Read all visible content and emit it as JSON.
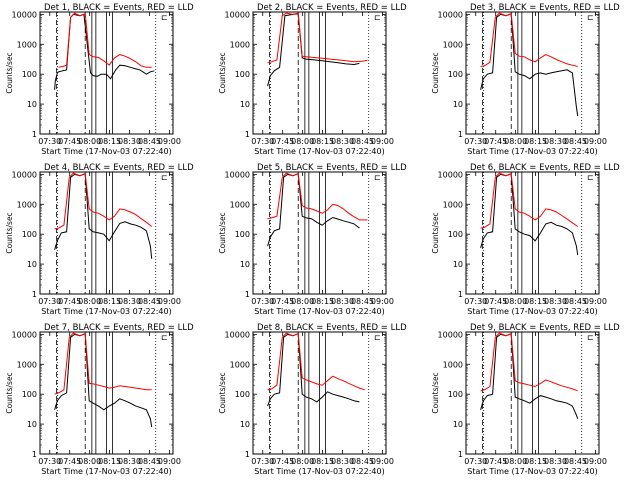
{
  "colors": {
    "black_series": "#000000",
    "red_series": "#ff0000",
    "background": "#ffffff",
    "axes": "#000000"
  },
  "common": {
    "xlabel": "Start Time (17-Nov-03 07:22:40)",
    "ylabel": "Counts/sec",
    "x_ticks": [
      "07:30",
      "07:45",
      "08:00",
      "08:15",
      "08:30",
      "08:45",
      "09:00"
    ],
    "y_ticks": [
      "1",
      "10",
      "100",
      "1000",
      "10000"
    ],
    "y_scale": "log",
    "ylim": [
      1,
      12000
    ],
    "legend_glyph": "⊏"
  },
  "chart_data": [
    {
      "type": "line",
      "title": "Det 1, BLACK = Events, RED = LLD",
      "xlabel": "Start Time (17-Nov-03 07:22:40)",
      "ylabel": "Counts/sec",
      "x_unit": "minutes after 07:22:40",
      "ylim": [
        1,
        12000
      ],
      "series": [
        {
          "name": "Events",
          "color": "#000000",
          "x": [
            11,
            11.5,
            13,
            14,
            20,
            23,
            25,
            30,
            33,
            38,
            40,
            43,
            46,
            50,
            53,
            57,
            60,
            64,
            68,
            72,
            75,
            80,
            83,
            86
          ],
          "y": [
            30,
            60,
            110,
            120,
            140,
            8000,
            10000,
            9000,
            10000,
            110,
            90,
            85,
            100,
            100,
            70,
            140,
            200,
            190,
            170,
            150,
            140,
            100,
            120,
            130
          ]
        },
        {
          "name": "LLD",
          "color": "#ff0000",
          "x": [
            14,
            17,
            20,
            23,
            26,
            30,
            34,
            37,
            40,
            44,
            48,
            52,
            56,
            60,
            64,
            68,
            72,
            76,
            80,
            84
          ],
          "y": [
            170,
            180,
            200,
            8000,
            11000,
            9000,
            10500,
            450,
            380,
            360,
            280,
            200,
            350,
            450,
            400,
            330,
            260,
            190,
            170,
            170
          ]
        }
      ]
    },
    {
      "type": "line",
      "title": "Det 2, BLACK = Events, RED = LLD",
      "xlabel": "Start Time (17-Nov-03 07:22:40)",
      "ylabel": "Counts/sec",
      "x_unit": "minutes after 07:22:40",
      "ylim": [
        1,
        12000
      ],
      "series": [
        {
          "name": "Events",
          "color": "#000000",
          "x": [
            11,
            13,
            16,
            20,
            24,
            30,
            34,
            37,
            40,
            46,
            52,
            58,
            64,
            70,
            76,
            80
          ],
          "y": [
            40,
            90,
            130,
            170,
            9000,
            10000,
            10500,
            350,
            320,
            300,
            280,
            260,
            240,
            220,
            210,
            230
          ]
        },
        {
          "name": "LLD",
          "color": "#ff0000",
          "x": [
            11,
            14,
            18,
            22,
            25,
            30,
            34,
            37,
            40,
            46,
            52,
            58,
            64,
            70,
            76,
            82,
            86
          ],
          "y": [
            240,
            260,
            300,
            9000,
            11000,
            10000,
            11000,
            400,
            380,
            360,
            340,
            320,
            300,
            280,
            260,
            270,
            290
          ]
        }
      ]
    },
    {
      "type": "line",
      "title": "Det 3, BLACK = Events, RED = LLD",
      "xlabel": "Start Time (17-Nov-03 07:22:40)",
      "ylabel": "Counts/sec",
      "x_unit": "minutes after 07:22:40",
      "ylim": [
        1,
        12000
      ],
      "series": [
        {
          "name": "Events",
          "color": "#000000",
          "x": [
            11,
            13,
            16,
            20,
            23,
            26,
            30,
            34,
            37,
            40,
            44,
            48,
            52,
            56,
            60,
            64,
            68,
            72,
            76,
            80,
            83,
            84
          ],
          "y": [
            30,
            70,
            100,
            110,
            8000,
            10000,
            9000,
            10500,
            120,
            100,
            90,
            70,
            100,
            110,
            100,
            110,
            120,
            130,
            140,
            110,
            8,
            4
          ]
        },
        {
          "name": "LLD",
          "color": "#ff0000",
          "x": [
            11,
            14,
            18,
            22,
            25,
            30,
            34,
            37,
            40,
            44,
            48,
            52,
            56,
            60,
            64,
            68,
            72,
            76,
            80,
            84
          ],
          "y": [
            180,
            190,
            250,
            8000,
            11000,
            9000,
            10500,
            500,
            400,
            380,
            300,
            260,
            350,
            450,
            380,
            310,
            260,
            220,
            200,
            180
          ]
        }
      ]
    },
    {
      "type": "line",
      "title": "Det 4, BLACK = Events, RED = LLD",
      "xlabel": "Start Time (17-Nov-03 07:22:40)",
      "ylabel": "Counts/sec",
      "x_unit": "minutes after 07:22:40",
      "ylim": [
        1,
        12000
      ],
      "series": [
        {
          "name": "Events",
          "color": "#000000",
          "x": [
            11,
            13,
            16,
            20,
            23,
            26,
            30,
            34,
            37,
            40,
            44,
            48,
            52,
            56,
            60,
            64,
            68,
            72,
            76,
            80,
            83,
            84
          ],
          "y": [
            30,
            60,
            110,
            120,
            8000,
            10000,
            9000,
            10500,
            150,
            120,
            110,
            100,
            60,
            120,
            230,
            260,
            220,
            200,
            170,
            130,
            40,
            15
          ]
        },
        {
          "name": "LLD",
          "color": "#ff0000",
          "x": [
            11,
            14,
            18,
            22,
            25,
            30,
            34,
            37,
            40,
            44,
            48,
            52,
            56,
            60,
            64,
            68,
            72,
            76,
            80,
            84
          ],
          "y": [
            150,
            160,
            200,
            8000,
            11000,
            9000,
            10500,
            700,
            550,
            500,
            400,
            300,
            400,
            700,
            650,
            550,
            450,
            330,
            250,
            180
          ]
        }
      ]
    },
    {
      "type": "line",
      "title": "Det 5, BLACK = Events, RED = LLD",
      "xlabel": "Start Time (17-Nov-03 07:22:40)",
      "ylabel": "Counts/sec",
      "x_unit": "minutes after 07:22:40",
      "ylim": [
        1,
        12000
      ],
      "series": [
        {
          "name": "Events",
          "color": "#000000",
          "x": [
            11,
            13,
            16,
            20,
            23,
            26,
            30,
            34,
            37,
            40,
            44,
            48,
            52,
            56,
            60,
            64,
            68,
            72,
            76,
            80
          ],
          "y": [
            40,
            80,
            130,
            150,
            8000,
            10000,
            9000,
            10500,
            400,
            350,
            330,
            250,
            200,
            280,
            360,
            320,
            280,
            250,
            220,
            160
          ]
        },
        {
          "name": "LLD",
          "color": "#ff0000",
          "x": [
            11,
            14,
            18,
            22,
            25,
            30,
            34,
            37,
            40,
            44,
            48,
            52,
            56,
            60,
            64,
            68,
            72,
            76,
            80,
            86
          ],
          "y": [
            330,
            350,
            400,
            8000,
            11000,
            9000,
            10500,
            900,
            750,
            700,
            600,
            500,
            650,
            1000,
            900,
            700,
            500,
            380,
            300,
            300
          ]
        }
      ]
    },
    {
      "type": "line",
      "title": "Det 6, BLACK = Events, RED = LLD",
      "xlabel": "Start Time (17-Nov-03 07:22:40)",
      "ylabel": "Counts/sec",
      "x_unit": "minutes after 07:22:40",
      "ylim": [
        1,
        12000
      ],
      "series": [
        {
          "name": "Events",
          "color": "#000000",
          "x": [
            11,
            13,
            16,
            20,
            23,
            26,
            30,
            34,
            37,
            40,
            44,
            48,
            52,
            56,
            60,
            64,
            68,
            72,
            76,
            80,
            83,
            84
          ],
          "y": [
            35,
            70,
            110,
            120,
            8000,
            10000,
            9000,
            10500,
            150,
            120,
            100,
            90,
            60,
            110,
            220,
            250,
            200,
            180,
            150,
            110,
            40,
            20
          ]
        },
        {
          "name": "LLD",
          "color": "#ff0000",
          "x": [
            11,
            14,
            18,
            22,
            25,
            30,
            34,
            37,
            40,
            44,
            48,
            52,
            56,
            60,
            64,
            68,
            72,
            76,
            80,
            84
          ],
          "y": [
            160,
            170,
            220,
            8000,
            11000,
            9000,
            10500,
            700,
            550,
            500,
            400,
            300,
            400,
            700,
            650,
            550,
            420,
            320,
            240,
            180
          ]
        }
      ]
    },
    {
      "type": "line",
      "title": "Det 7, BLACK = Events, RED = LLD",
      "xlabel": "Start Time (17-Nov-03 07:22:40)",
      "ylabel": "Counts/sec",
      "x_unit": "minutes after 07:22:40",
      "ylim": [
        1,
        12000
      ],
      "series": [
        {
          "name": "Events",
          "color": "#000000",
          "x": [
            11,
            13,
            16,
            20,
            23,
            26,
            30,
            34,
            37,
            40,
            44,
            48,
            52,
            56,
            60,
            64,
            68,
            72,
            76,
            80,
            83,
            84
          ],
          "y": [
            30,
            60,
            90,
            110,
            8000,
            10000,
            9000,
            10500,
            60,
            50,
            40,
            30,
            40,
            50,
            70,
            60,
            50,
            40,
            35,
            30,
            15,
            8
          ]
        },
        {
          "name": "LLD",
          "color": "#ff0000",
          "x": [
            11,
            14,
            18,
            22,
            25,
            30,
            34,
            37,
            40,
            44,
            48,
            52,
            56,
            60,
            64,
            68,
            72,
            76,
            80,
            84
          ],
          "y": [
            100,
            110,
            140,
            8000,
            11000,
            9000,
            10500,
            230,
            220,
            200,
            180,
            160,
            170,
            190,
            180,
            170,
            160,
            150,
            140,
            140
          ]
        }
      ]
    },
    {
      "type": "line",
      "title": "Det 8, BLACK = Events, RED = LLD",
      "xlabel": "Start Time (17-Nov-03 07:22:40)",
      "ylabel": "Counts/sec",
      "x_unit": "minutes after 07:22:40",
      "ylim": [
        1,
        12000
      ],
      "series": [
        {
          "name": "Events",
          "color": "#000000",
          "x": [
            11,
            13,
            16,
            20,
            23,
            26,
            30,
            34,
            37,
            40,
            44,
            48,
            52,
            56,
            60,
            64,
            68,
            72,
            76,
            80
          ],
          "y": [
            40,
            70,
            100,
            110,
            8000,
            10000,
            9000,
            10500,
            100,
            80,
            70,
            55,
            80,
            120,
            100,
            90,
            80,
            70,
            60,
            55
          ]
        },
        {
          "name": "LLD",
          "color": "#ff0000",
          "x": [
            11,
            14,
            18,
            22,
            25,
            30,
            34,
            37,
            40,
            44,
            48,
            52,
            56,
            60,
            64,
            68,
            72,
            76,
            80,
            84
          ],
          "y": [
            140,
            150,
            200,
            8000,
            11000,
            9000,
            10500,
            350,
            300,
            260,
            220,
            200,
            280,
            400,
            330,
            280,
            230,
            190,
            160,
            140
          ]
        }
      ]
    },
    {
      "type": "line",
      "title": "Det 9, BLACK = Events, RED = LLD",
      "xlabel": "Start Time (17-Nov-03 07:22:40)",
      "ylabel": "Counts/sec",
      "x_unit": "minutes after 07:22:40",
      "ylim": [
        1,
        12000
      ],
      "series": [
        {
          "name": "Events",
          "color": "#000000",
          "x": [
            11,
            13,
            16,
            20,
            23,
            26,
            30,
            34,
            37,
            40,
            44,
            48,
            52,
            56,
            60,
            64,
            68,
            72,
            76,
            80,
            83,
            84
          ],
          "y": [
            30,
            60,
            90,
            100,
            8000,
            10000,
            9000,
            10500,
            80,
            70,
            60,
            50,
            70,
            90,
            80,
            70,
            60,
            55,
            50,
            40,
            20,
            15
          ]
        },
        {
          "name": "LLD",
          "color": "#ff0000",
          "x": [
            11,
            14,
            18,
            22,
            25,
            30,
            34,
            37,
            40,
            44,
            48,
            52,
            56,
            60,
            64,
            68,
            72,
            76,
            80,
            84
          ],
          "y": [
            130,
            140,
            180,
            8000,
            11000,
            9000,
            10500,
            280,
            240,
            220,
            200,
            180,
            230,
            300,
            260,
            220,
            190,
            170,
            150,
            130
          ]
        }
      ]
    }
  ]
}
